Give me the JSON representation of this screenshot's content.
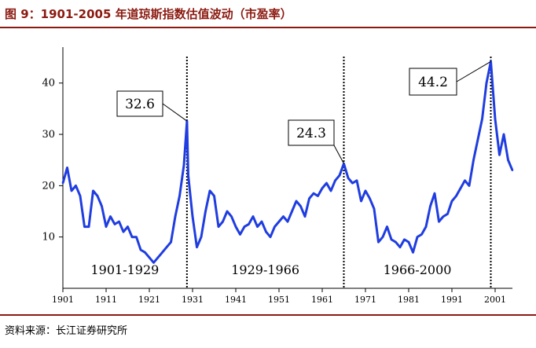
{
  "header": {
    "title": "图 9：1901-2005 年道琼斯指数估值波动（市盈率）"
  },
  "footer": {
    "source": "资料来源：长江证券研究所"
  },
  "colors": {
    "line": "#1f3de0",
    "title": "#8b1a10",
    "axis": "#000000"
  },
  "chart_data": {
    "type": "line",
    "title": "",
    "xlabel": "",
    "ylabel": "",
    "xlim": [
      1901,
      2005
    ],
    "ylim": [
      0,
      47
    ],
    "x_ticks": [
      1901,
      1911,
      1921,
      1931,
      1941,
      1951,
      1961,
      1971,
      1981,
      1991,
      2001
    ],
    "y_ticks": [
      10,
      20,
      30,
      40
    ],
    "grid": false,
    "legend": "none",
    "series": [
      {
        "x": [
          1901,
          1902,
          1903,
          1904,
          1905,
          1906,
          1907,
          1908,
          1909,
          1910,
          1911,
          1912,
          1913,
          1914,
          1915,
          1916,
          1917,
          1918,
          1919,
          1920,
          1921,
          1922,
          1923,
          1924,
          1925,
          1926,
          1927,
          1928,
          1929,
          1929.7,
          1930,
          1931,
          1932,
          1933,
          1934,
          1935,
          1936,
          1937,
          1938,
          1939,
          1940,
          1941,
          1942,
          1943,
          1944,
          1945,
          1946,
          1947,
          1948,
          1949,
          1950,
          1951,
          1952,
          1953,
          1954,
          1955,
          1956,
          1957,
          1958,
          1959,
          1960,
          1961,
          1962,
          1963,
          1964,
          1965,
          1966,
          1967,
          1968,
          1969,
          1970,
          1971,
          1972,
          1973,
          1974,
          1975,
          1976,
          1977,
          1978,
          1979,
          1980,
          1981,
          1982,
          1983,
          1984,
          1985,
          1986,
          1987,
          1988,
          1989,
          1990,
          1991,
          1992,
          1993,
          1994,
          1995,
          1996,
          1997,
          1998,
          1999,
          2000,
          2001,
          2002,
          2003,
          2004,
          2005
        ],
        "values": [
          20.5,
          23.5,
          19.0,
          20.0,
          18.0,
          12.0,
          12.0,
          19.0,
          18.0,
          16.0,
          12.0,
          14.0,
          12.5,
          13.0,
          11.0,
          12.0,
          10.0,
          10.0,
          7.5,
          7.0,
          6.0,
          5.0,
          6.0,
          7.0,
          8.0,
          9.0,
          14.0,
          18.0,
          24.0,
          32.6,
          22.0,
          14.0,
          8.0,
          10.0,
          15.0,
          19.0,
          18.0,
          12.0,
          13.0,
          15.0,
          14.0,
          12.0,
          10.5,
          12.0,
          12.5,
          14.0,
          12.0,
          13.0,
          11.0,
          10.0,
          12.0,
          13.0,
          14.0,
          13.0,
          15.0,
          17.0,
          16.0,
          14.0,
          17.5,
          18.5,
          18.0,
          19.5,
          20.5,
          19.0,
          21.0,
          22.0,
          24.3,
          21.5,
          20.5,
          21.0,
          17.0,
          19.0,
          17.5,
          15.5,
          9.0,
          10.0,
          12.0,
          9.5,
          9.0,
          8.0,
          9.5,
          9.0,
          7.0,
          10.0,
          10.5,
          12.0,
          16.0,
          18.5,
          13.0,
          14.0,
          14.5,
          17.0,
          18.0,
          19.5,
          21.0,
          20.0,
          25.0,
          29.0,
          33.0,
          40.0,
          44.2,
          33.0,
          26.0,
          30.0,
          25.0,
          23.0
        ]
      }
    ],
    "annotations": [
      {
        "text": "32.6",
        "x": 1929.7,
        "y": 32.6
      },
      {
        "text": "24.3",
        "x": 1966,
        "y": 24.3
      },
      {
        "text": "44.2",
        "x": 2000,
        "y": 44.2
      }
    ],
    "periods": [
      {
        "label": "1901-1929",
        "start": 1901,
        "end": 1929.7
      },
      {
        "label": "1929-1966",
        "start": 1929.7,
        "end": 1966
      },
      {
        "label": "1966-2000",
        "start": 1966,
        "end": 2000
      }
    ]
  }
}
